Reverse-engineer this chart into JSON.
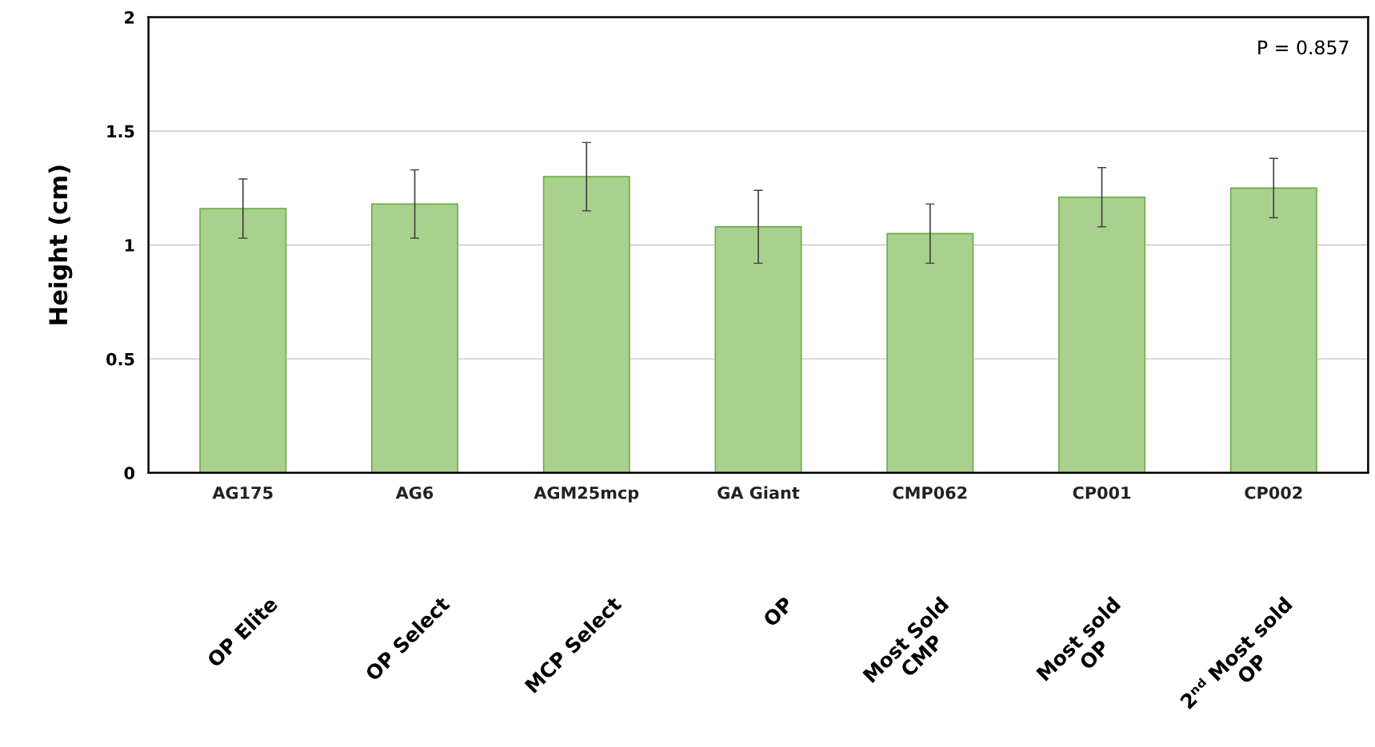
{
  "chart_data": {
    "type": "bar",
    "ylabel": "Height (cm)",
    "categories": [
      "AG175",
      "AG6",
      "AGM25mcp",
      "GA Giant",
      "CMP062",
      "CP001",
      "CP002"
    ],
    "values": [
      1.16,
      1.18,
      1.3,
      1.08,
      1.05,
      1.21,
      1.25
    ],
    "errors": [
      0.13,
      0.15,
      0.15,
      0.16,
      0.13,
      0.13,
      0.13
    ],
    "color": "#a9d18e",
    "ylim": [
      0,
      2
    ],
    "yticks": [
      0,
      0.5,
      1,
      1.5,
      2
    ],
    "grid": "y",
    "annotations": [
      "P = 0.857",
      "OP Elite",
      "OP Select",
      "MCP Select",
      "OP",
      "Most Sold\nCMP",
      "Most sold\nOP",
      "2ⁿᵈ Most sold\nOP"
    ]
  }
}
